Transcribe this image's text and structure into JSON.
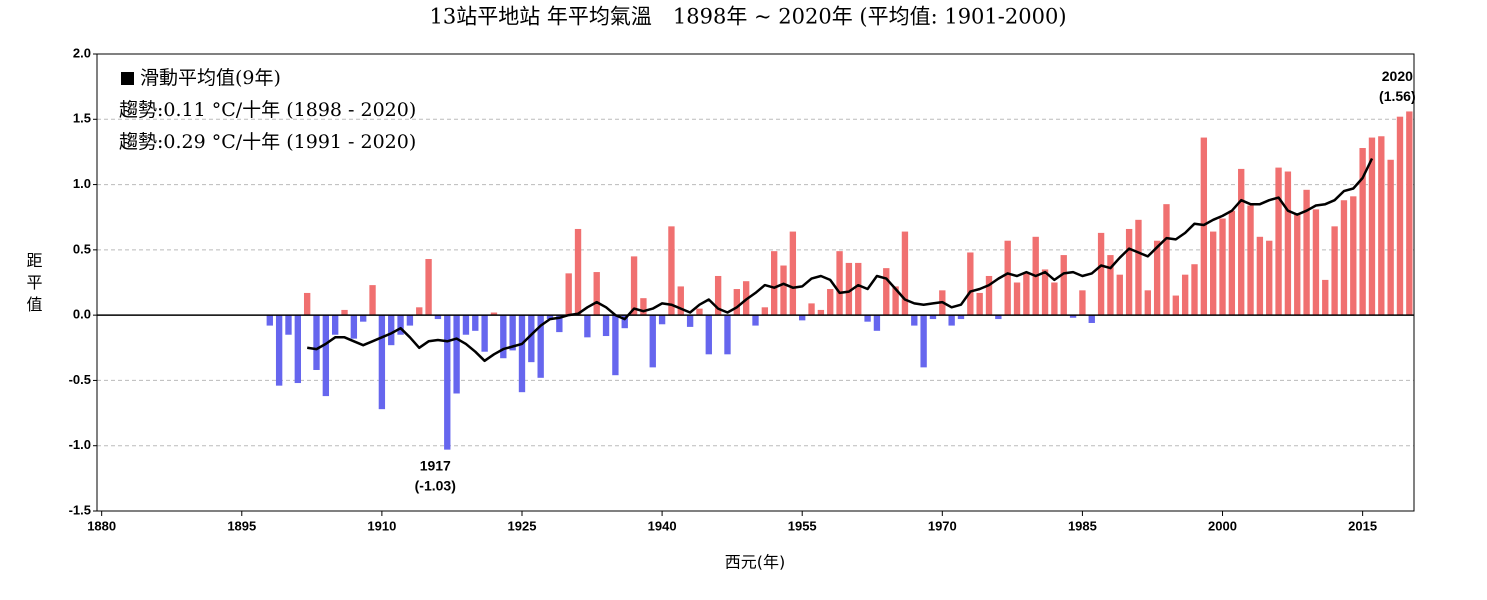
{
  "chart_data": {
    "type": "bar",
    "title": "13站平地站 年平均氣溫　1898年 ~ 2020年 (平均值: 1901-2000)",
    "x_label": "西元(年)",
    "y_label": "距平值",
    "x": [
      1898,
      1899,
      1900,
      1901,
      1902,
      1903,
      1904,
      1905,
      1906,
      1907,
      1908,
      1909,
      1910,
      1911,
      1912,
      1913,
      1914,
      1915,
      1916,
      1917,
      1918,
      1919,
      1920,
      1921,
      1922,
      1923,
      1924,
      1925,
      1926,
      1927,
      1928,
      1929,
      1930,
      1931,
      1932,
      1933,
      1934,
      1935,
      1936,
      1937,
      1938,
      1939,
      1940,
      1941,
      1942,
      1943,
      1944,
      1945,
      1946,
      1947,
      1948,
      1949,
      1950,
      1951,
      1952,
      1953,
      1954,
      1955,
      1956,
      1957,
      1958,
      1959,
      1960,
      1961,
      1962,
      1963,
      1964,
      1965,
      1966,
      1967,
      1968,
      1969,
      1970,
      1971,
      1972,
      1973,
      1974,
      1975,
      1976,
      1977,
      1978,
      1979,
      1980,
      1981,
      1982,
      1983,
      1984,
      1985,
      1986,
      1987,
      1988,
      1989,
      1990,
      1991,
      1992,
      1993,
      1994,
      1995,
      1996,
      1997,
      1998,
      1999,
      2000,
      2001,
      2002,
      2003,
      2004,
      2005,
      2006,
      2007,
      2008,
      2009,
      2010,
      2011,
      2012,
      2013,
      2014,
      2015,
      2016,
      2017,
      2018,
      2019,
      2020
    ],
    "values": [
      -0.08,
      -0.54,
      -0.15,
      -0.52,
      0.17,
      -0.42,
      -0.62,
      -0.15,
      0.04,
      -0.18,
      -0.05,
      0.23,
      -0.72,
      -0.23,
      -0.15,
      -0.08,
      0.06,
      0.43,
      -0.03,
      -1.03,
      -0.6,
      -0.15,
      -0.12,
      -0.28,
      0.02,
      -0.33,
      -0.27,
      -0.59,
      -0.36,
      -0.48,
      -0.03,
      -0.13,
      0.32,
      0.66,
      -0.17,
      0.33,
      -0.16,
      -0.46,
      -0.1,
      0.45,
      0.13,
      -0.4,
      -0.07,
      0.68,
      0.22,
      -0.09,
      0.05,
      -0.3,
      0.3,
      -0.3,
      0.2,
      0.26,
      -0.08,
      0.06,
      0.49,
      0.38,
      0.64,
      -0.04,
      0.09,
      0.04,
      0.2,
      0.49,
      0.4,
      0.4,
      -0.05,
      -0.12,
      0.36,
      0.22,
      0.64,
      -0.08,
      -0.4,
      -0.03,
      0.19,
      -0.08,
      -0.03,
      0.48,
      0.17,
      0.3,
      -0.03,
      0.57,
      0.25,
      0.33,
      0.6,
      0.35,
      0.25,
      0.46,
      -0.02,
      0.19,
      -0.06,
      0.63,
      0.46,
      0.31,
      0.66,
      0.73,
      0.19,
      0.57,
      0.85,
      0.15,
      0.31,
      0.39,
      1.36,
      0.64,
      0.74,
      0.8,
      1.12,
      0.84,
      0.6,
      0.57,
      1.13,
      1.1,
      0.78,
      0.96,
      0.81,
      0.27,
      0.68,
      0.88,
      0.91,
      1.28,
      1.36,
      1.37,
      1.19,
      1.52,
      1.56
    ],
    "positive_color": "#f07070",
    "negative_color": "#6666ee",
    "moving_average": {
      "name": "滑動平均值(9年)",
      "color": "#000000",
      "x": [
        1902,
        1903,
        1904,
        1905,
        1906,
        1907,
        1908,
        1909,
        1910,
        1911,
        1912,
        1913,
        1914,
        1915,
        1916,
        1917,
        1918,
        1919,
        1920,
        1921,
        1922,
        1923,
        1924,
        1925,
        1926,
        1927,
        1928,
        1929,
        1930,
        1931,
        1932,
        1933,
        1934,
        1935,
        1936,
        1937,
        1938,
        1939,
        1940,
        1941,
        1942,
        1943,
        1944,
        1945,
        1946,
        1947,
        1948,
        1949,
        1950,
        1951,
        1952,
        1953,
        1954,
        1955,
        1956,
        1957,
        1958,
        1959,
        1960,
        1961,
        1962,
        1963,
        1964,
        1965,
        1966,
        1967,
        1968,
        1969,
        1970,
        1971,
        1972,
        1973,
        1974,
        1975,
        1976,
        1977,
        1978,
        1979,
        1980,
        1981,
        1982,
        1983,
        1984,
        1985,
        1986,
        1987,
        1988,
        1989,
        1990,
        1991,
        1992,
        1993,
        1994,
        1995,
        1996,
        1997,
        1998,
        1999,
        2000,
        2001,
        2002,
        2003,
        2004,
        2005,
        2006,
        2007,
        2008,
        2009,
        2010,
        2011,
        2012,
        2013,
        2014,
        2015,
        2016
      ],
      "values": [
        -0.25,
        -0.26,
        -0.22,
        -0.17,
        -0.17,
        -0.2,
        -0.23,
        -0.2,
        -0.17,
        -0.14,
        -0.1,
        -0.17,
        -0.25,
        -0.2,
        -0.19,
        -0.2,
        -0.18,
        -0.22,
        -0.28,
        -0.35,
        -0.3,
        -0.26,
        -0.24,
        -0.22,
        -0.15,
        -0.08,
        -0.03,
        -0.02,
        0.0,
        0.01,
        0.06,
        0.1,
        0.06,
        0.0,
        -0.03,
        0.05,
        0.03,
        0.05,
        0.09,
        0.08,
        0.05,
        0.02,
        0.08,
        0.12,
        0.05,
        0.02,
        0.06,
        0.12,
        0.17,
        0.23,
        0.21,
        0.24,
        0.21,
        0.22,
        0.28,
        0.3,
        0.27,
        0.17,
        0.18,
        0.23,
        0.2,
        0.3,
        0.28,
        0.2,
        0.12,
        0.09,
        0.08,
        0.09,
        0.1,
        0.06,
        0.08,
        0.18,
        0.2,
        0.23,
        0.28,
        0.32,
        0.3,
        0.33,
        0.3,
        0.33,
        0.27,
        0.32,
        0.33,
        0.3,
        0.32,
        0.38,
        0.36,
        0.44,
        0.51,
        0.48,
        0.45,
        0.52,
        0.59,
        0.58,
        0.63,
        0.7,
        0.69,
        0.73,
        0.76,
        0.8,
        0.88,
        0.85,
        0.85,
        0.88,
        0.9,
        0.8,
        0.77,
        0.8,
        0.84,
        0.85,
        0.88,
        0.95,
        0.97,
        1.05,
        1.2
      ]
    },
    "legend_notes": [
      "趨勢:0.11 °C/十年 (1898 - 2020)",
      "趨勢:0.29 °C/十年 (1991 - 2020)"
    ],
    "annotations": [
      {
        "x": 1917,
        "y": -1.03,
        "lines": [
          "1917",
          "(-1.03)"
        ],
        "side": "below"
      },
      {
        "x": 2020,
        "y": 1.56,
        "lines": [
          "2020",
          "(1.56)"
        ],
        "side": "above"
      }
    ],
    "xlim": [
      1879.5,
      2020.5
    ],
    "ylim": [
      -1.5,
      2.0
    ],
    "xticks": [
      1880,
      1895,
      1910,
      1925,
      1940,
      1955,
      1970,
      1985,
      2000,
      2015
    ],
    "yticks": [
      {
        "value": -1.5,
        "label": "-1.5"
      },
      {
        "value": -1.0,
        "label": "-1.0"
      },
      {
        "value": -0.5,
        "label": "-0.5"
      },
      {
        "value": 0,
        "label": "0.0"
      },
      {
        "value": 0.5,
        "label": "0.5"
      },
      {
        "value": 1.0,
        "label": "1.0"
      },
      {
        "value": 1.5,
        "label": "1.5"
      },
      {
        "value": 2.0,
        "label": "2.0"
      }
    ],
    "grid": true
  }
}
